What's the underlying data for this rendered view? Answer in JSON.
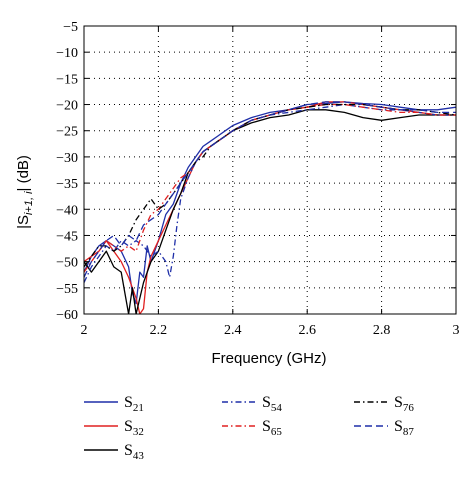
{
  "chart_data": {
    "type": "line",
    "title": "",
    "xlabel": "Frequency (GHz)",
    "ylabel_main": "|S",
    "ylabel_sub": "i+1, i",
    "ylabel_tail": "| (dB)",
    "xlim": [
      2,
      3
    ],
    "ylim": [
      -60,
      -5
    ],
    "xticks": [
      2,
      2.2,
      2.4,
      2.6,
      2.8,
      3
    ],
    "xtick_labels": [
      "2",
      "2.2",
      "2.4",
      "2.6",
      "2.8",
      "3"
    ],
    "yticks": [
      -60,
      -55,
      -50,
      -45,
      -40,
      -35,
      -30,
      -25,
      -20,
      -15,
      -10,
      -5
    ],
    "ytick_labels": [
      "−60",
      "−55",
      "−50",
      "−45",
      "−40",
      "−35",
      "−30",
      "−25",
      "−20",
      "−15",
      "−10",
      "−5"
    ],
    "grid": true,
    "legend_position": "bottom",
    "series": [
      {
        "name_main": "S",
        "name_sub": "21",
        "color": "#1f2fa8",
        "dash": "",
        "x": [
          2.0,
          2.02,
          2.04,
          2.06,
          2.08,
          2.1,
          2.12,
          2.13,
          2.14,
          2.15,
          2.16,
          2.17,
          2.18,
          2.2,
          2.22,
          2.24,
          2.26,
          2.28,
          2.3,
          2.32,
          2.34,
          2.36,
          2.38,
          2.4,
          2.45,
          2.5,
          2.55,
          2.6,
          2.65,
          2.7,
          2.75,
          2.8,
          2.85,
          2.9,
          2.95,
          3.0
        ],
        "y": [
          -52,
          -49,
          -47,
          -46,
          -47,
          -48,
          -51,
          -56,
          -58,
          -52,
          -53,
          -47,
          -50,
          -46,
          -41,
          -39,
          -35,
          -32,
          -30,
          -28,
          -27,
          -26,
          -25,
          -24,
          -22.5,
          -21.5,
          -21,
          -20,
          -19.8,
          -19.5,
          -19.8,
          -20,
          -20.5,
          -21,
          -21,
          -20.5
        ]
      },
      {
        "name_main": "S",
        "name_sub": "32",
        "color": "#e02020",
        "dash": "",
        "x": [
          2.0,
          2.02,
          2.04,
          2.06,
          2.08,
          2.1,
          2.12,
          2.14,
          2.15,
          2.16,
          2.17,
          2.18,
          2.2,
          2.22,
          2.24,
          2.26,
          2.28,
          2.3,
          2.32,
          2.34,
          2.36,
          2.38,
          2.4,
          2.45,
          2.5,
          2.55,
          2.6,
          2.65,
          2.7,
          2.75,
          2.8,
          2.85,
          2.9,
          2.95,
          3.0
        ],
        "y": [
          -50,
          -49,
          -48,
          -46,
          -48,
          -50,
          -53,
          -57,
          -60,
          -59,
          -52,
          -49,
          -46,
          -43,
          -40,
          -37,
          -34,
          -31,
          -29,
          -28,
          -27,
          -26,
          -25,
          -23,
          -22,
          -21,
          -20.5,
          -19.5,
          -19.5,
          -20,
          -20.5,
          -21,
          -21.5,
          -22,
          -22
        ]
      },
      {
        "name_main": "S",
        "name_sub": "43",
        "color": "#000000",
        "dash": "",
        "x": [
          2.0,
          2.02,
          2.04,
          2.06,
          2.08,
          2.1,
          2.11,
          2.12,
          2.13,
          2.14,
          2.16,
          2.18,
          2.2,
          2.22,
          2.24,
          2.26,
          2.28,
          2.3,
          2.32,
          2.34,
          2.36,
          2.38,
          2.4,
          2.45,
          2.5,
          2.55,
          2.6,
          2.65,
          2.7,
          2.75,
          2.8,
          2.85,
          2.9,
          2.95,
          3.0
        ],
        "y": [
          -50,
          -52,
          -50,
          -48,
          -51,
          -52,
          -56,
          -60,
          -55,
          -60,
          -54,
          -50,
          -48,
          -44,
          -40,
          -37,
          -33,
          -31,
          -29,
          -28,
          -27,
          -26,
          -25,
          -23.5,
          -22.5,
          -22,
          -21,
          -21,
          -21.5,
          -22.5,
          -23,
          -22.5,
          -22,
          -22,
          -22
        ]
      },
      {
        "name_main": "S",
        "name_sub": "54",
        "color": "#1f2fa8",
        "dash": "6 3 1.5 3",
        "x": [
          2.0,
          2.02,
          2.04,
          2.06,
          2.08,
          2.1,
          2.12,
          2.14,
          2.16,
          2.18,
          2.2,
          2.22,
          2.23,
          2.24,
          2.25,
          2.26,
          2.28,
          2.3,
          2.32,
          2.34,
          2.36,
          2.38,
          2.4,
          2.45,
          2.5,
          2.55,
          2.6,
          2.65,
          2.7,
          2.75,
          2.8,
          2.85,
          2.9,
          2.95,
          3.0
        ],
        "y": [
          -54,
          -51,
          -49,
          -47,
          -48,
          -46,
          -47,
          -46,
          -47,
          -49,
          -48,
          -50,
          -53,
          -49,
          -43,
          -38,
          -34,
          -31,
          -29,
          -28,
          -27,
          -26,
          -25,
          -23,
          -22,
          -21.5,
          -21,
          -20.5,
          -20,
          -20.5,
          -21,
          -21,
          -21.5,
          -22,
          -22
        ]
      },
      {
        "name_main": "S",
        "name_sub": "65",
        "color": "#e02020",
        "dash": "6 3 1.5 3",
        "x": [
          2.0,
          2.02,
          2.04,
          2.06,
          2.08,
          2.1,
          2.12,
          2.14,
          2.16,
          2.18,
          2.2,
          2.22,
          2.24,
          2.26,
          2.28,
          2.3,
          2.32,
          2.34,
          2.36,
          2.38,
          2.4,
          2.45,
          2.5,
          2.55,
          2.6,
          2.65,
          2.7,
          2.75,
          2.8,
          2.85,
          2.9,
          2.95,
          3.0
        ],
        "y": [
          -52,
          -50,
          -48,
          -46,
          -47,
          -48,
          -47,
          -48,
          -44,
          -41,
          -40,
          -38,
          -36,
          -34,
          -33,
          -31,
          -29,
          -28,
          -27,
          -26,
          -25,
          -23,
          -22,
          -21,
          -20.5,
          -20,
          -20,
          -20.5,
          -21,
          -21.5,
          -21.5,
          -22,
          -22
        ]
      },
      {
        "name_main": "S",
        "name_sub": "76",
        "color": "#000000",
        "dash": "6 3 1.5 3",
        "x": [
          2.0,
          2.02,
          2.04,
          2.06,
          2.08,
          2.1,
          2.12,
          2.14,
          2.16,
          2.18,
          2.2,
          2.22,
          2.24,
          2.26,
          2.28,
          2.3,
          2.32,
          2.34,
          2.36,
          2.38,
          2.4,
          2.45,
          2.5,
          2.55,
          2.6,
          2.65,
          2.7,
          2.75,
          2.8,
          2.85,
          2.9,
          2.95,
          3.0
        ],
        "y": [
          -51,
          -49,
          -47,
          -47,
          -48,
          -47,
          -45,
          -42,
          -40,
          -38,
          -40,
          -39,
          -37,
          -35,
          -33,
          -31,
          -30,
          -28,
          -27,
          -26,
          -25,
          -23,
          -22,
          -21,
          -20.5,
          -20,
          -20,
          -20,
          -20.5,
          -21,
          -21,
          -21.5,
          -22
        ]
      },
      {
        "name_main": "S",
        "name_sub": "87",
        "color": "#1f2fa8",
        "dash": "7 4",
        "x": [
          2.0,
          2.02,
          2.04,
          2.06,
          2.08,
          2.1,
          2.12,
          2.14,
          2.16,
          2.18,
          2.2,
          2.22,
          2.24,
          2.26,
          2.28,
          2.3,
          2.32,
          2.34,
          2.36,
          2.38,
          2.4,
          2.45,
          2.5,
          2.55,
          2.6,
          2.65,
          2.7,
          2.75,
          2.8,
          2.85,
          2.9,
          2.95,
          3.0
        ],
        "y": [
          -53,
          -50,
          -48,
          -46,
          -45,
          -47,
          -45,
          -46,
          -43,
          -42,
          -41,
          -39,
          -37,
          -35,
          -33,
          -31,
          -29,
          -28,
          -27,
          -26,
          -25,
          -23,
          -22,
          -21,
          -20,
          -19.5,
          -19.5,
          -20,
          -20.5,
          -21,
          -21,
          -21.5,
          -21.5
        ]
      }
    ]
  }
}
